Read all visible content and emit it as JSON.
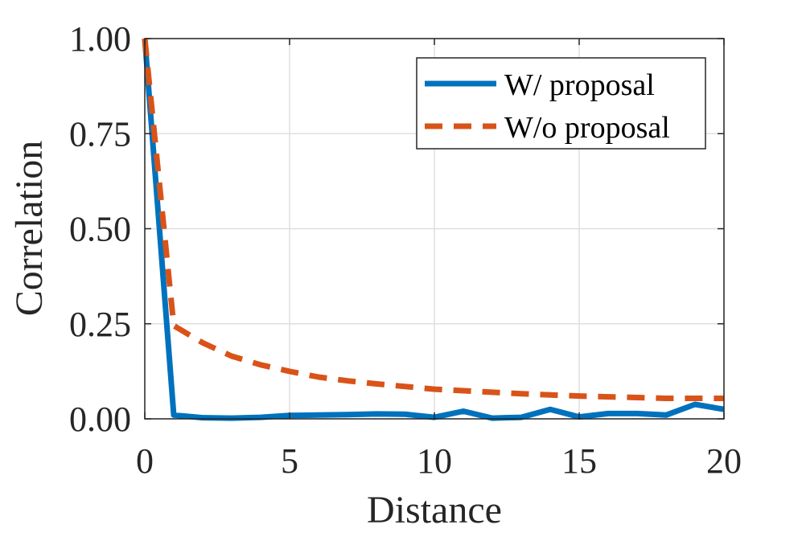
{
  "chart_data": {
    "type": "line",
    "title": "",
    "xlabel": "Distance",
    "ylabel": "Correlation",
    "xlim": [
      0,
      20
    ],
    "ylim": [
      0,
      1
    ],
    "grid": true,
    "legend_position": "top-right",
    "xticks": [
      "0",
      "5",
      "10",
      "15",
      "20"
    ],
    "xtick_values": [
      0,
      5,
      10,
      15,
      20
    ],
    "yticks": [
      "0.00",
      "0.25",
      "0.50",
      "0.75",
      "1.00"
    ],
    "ytick_values": [
      0,
      0.25,
      0.5,
      0.75,
      1.0
    ],
    "x": [
      0,
      1,
      2,
      3,
      4,
      5,
      6,
      7,
      8,
      9,
      10,
      11,
      12,
      13,
      14,
      15,
      16,
      17,
      18,
      19,
      20
    ],
    "series": [
      {
        "name": "W/ proposal",
        "color": "#0072BD",
        "style": "solid",
        "values": [
          1.0,
          0.01,
          0.003,
          0.002,
          0.004,
          0.009,
          0.01,
          0.011,
          0.013,
          0.012,
          0.004,
          0.02,
          0.002,
          0.004,
          0.025,
          0.005,
          0.014,
          0.014,
          0.01,
          0.038,
          0.025
        ]
      },
      {
        "name": "W/o proposal",
        "color": "#D95319",
        "style": "dashed",
        "values": [
          1.0,
          0.245,
          0.2,
          0.165,
          0.142,
          0.125,
          0.11,
          0.1,
          0.092,
          0.085,
          0.078,
          0.074,
          0.07,
          0.066,
          0.063,
          0.06,
          0.058,
          0.056,
          0.054,
          0.054,
          0.054
        ]
      }
    ]
  }
}
